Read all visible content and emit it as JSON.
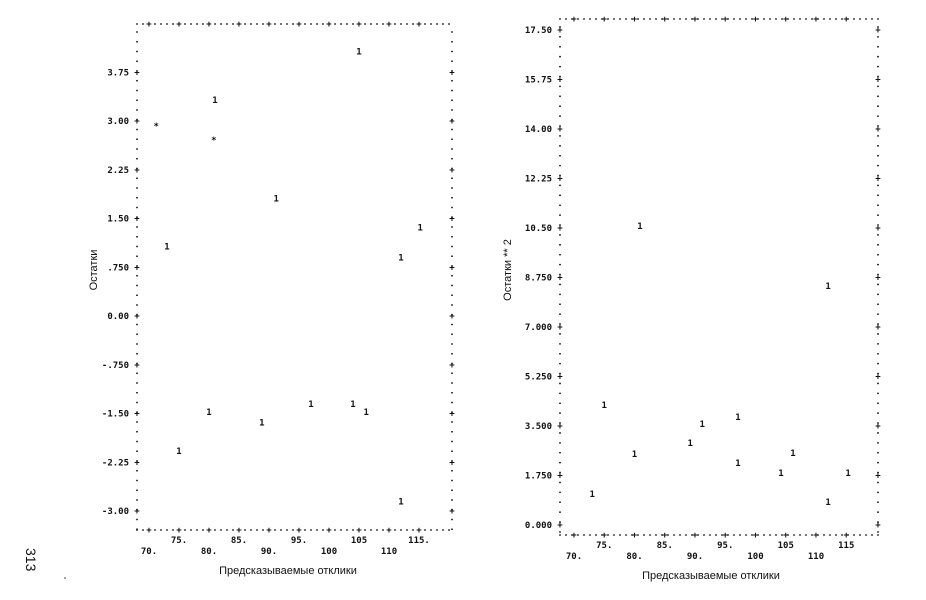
{
  "page_number": "313",
  "chart_data": [
    {
      "type": "scatter",
      "title": "",
      "xlabel": "Предсказываемые отклики",
      "ylabel": "Остатки",
      "xlim": [
        70,
        120
      ],
      "ylim": [
        -3.3,
        4.5
      ],
      "grid": false,
      "x_ticks": [
        {
          "v": 70,
          "label": "70."
        },
        {
          "v": 75,
          "label": "75."
        },
        {
          "v": 80,
          "label": "80."
        },
        {
          "v": 85,
          "label": "85."
        },
        {
          "v": 90,
          "label": "90."
        },
        {
          "v": 95,
          "label": "95."
        },
        {
          "v": 100,
          "label": "100"
        },
        {
          "v": 105,
          "label": "105"
        },
        {
          "v": 110,
          "label": "110"
        },
        {
          "v": 115,
          "label": "115."
        }
      ],
      "y_ticks": [
        {
          "v": 3.75,
          "label": "3.75"
        },
        {
          "v": 3.0,
          "label": "3.00"
        },
        {
          "v": 2.25,
          "label": "2.25"
        },
        {
          "v": 1.5,
          "label": "1.50"
        },
        {
          "v": 0.75,
          "label": ".750"
        },
        {
          "v": 0.0,
          "label": "0.00"
        },
        {
          "v": -0.75,
          "label": "-.750"
        },
        {
          "v": -1.5,
          "label": "-1.50"
        },
        {
          "v": -2.25,
          "label": "-2.25"
        },
        {
          "v": -3.0,
          "label": "-3.00"
        }
      ],
      "points": [
        {
          "x": 71.2,
          "y": 2.92,
          "symbol": "*"
        },
        {
          "x": 73.0,
          "y": 1.07,
          "symbol": "1"
        },
        {
          "x": 75.0,
          "y": -2.08,
          "symbol": "1"
        },
        {
          "x": 80.0,
          "y": -1.48,
          "symbol": "1"
        },
        {
          "x": 81.0,
          "y": 3.32,
          "symbol": "1"
        },
        {
          "x": 80.8,
          "y": 2.71,
          "symbol": "*"
        },
        {
          "x": 91.2,
          "y": 1.81,
          "symbol": "1"
        },
        {
          "x": 88.8,
          "y": -1.64,
          "symbol": "1"
        },
        {
          "x": 97.0,
          "y": -1.35,
          "symbol": "1"
        },
        {
          "x": 105.0,
          "y": 4.07,
          "symbol": "1"
        },
        {
          "x": 104.0,
          "y": -1.35,
          "symbol": "1"
        },
        {
          "x": 106.2,
          "y": -1.48,
          "symbol": "1"
        },
        {
          "x": 112.0,
          "y": 0.9,
          "symbol": "1"
        },
        {
          "x": 112.0,
          "y": -2.85,
          "symbol": "1"
        },
        {
          "x": 115.2,
          "y": 1.36,
          "symbol": "1"
        }
      ]
    },
    {
      "type": "scatter",
      "title": "",
      "xlabel": "Предсказываемые отклики",
      "ylabel": "Остатки ** 2",
      "xlim": [
        70,
        120
      ],
      "ylim": [
        -0.35,
        17.9
      ],
      "grid": false,
      "x_ticks": [
        {
          "v": 70,
          "label": "70."
        },
        {
          "v": 75,
          "label": "75."
        },
        {
          "v": 80,
          "label": "80."
        },
        {
          "v": 85,
          "label": "85."
        },
        {
          "v": 90,
          "label": "90."
        },
        {
          "v": 95,
          "label": "95."
        },
        {
          "v": 100,
          "label": "100"
        },
        {
          "v": 105,
          "label": "105"
        },
        {
          "v": 110,
          "label": "110"
        },
        {
          "v": 115,
          "label": "115"
        }
      ],
      "y_ticks": [
        {
          "v": 17.5,
          "label": "17.50"
        },
        {
          "v": 15.75,
          "label": "15.75"
        },
        {
          "v": 14.0,
          "label": "14.00"
        },
        {
          "v": 12.25,
          "label": "12.25"
        },
        {
          "v": 10.5,
          "label": "10.50"
        },
        {
          "v": 8.75,
          "label": "8.750"
        },
        {
          "v": 7.0,
          "label": "7.000"
        },
        {
          "v": 5.25,
          "label": "5.250"
        },
        {
          "v": 3.5,
          "label": "3.500"
        },
        {
          "v": 1.75,
          "label": "1.750"
        },
        {
          "v": 0.0,
          "label": "0.000"
        }
      ],
      "points": [
        {
          "x": 73.0,
          "y": 1.1,
          "symbol": "1"
        },
        {
          "x": 75.0,
          "y": 4.24,
          "symbol": "1"
        },
        {
          "x": 80.9,
          "y": 10.57,
          "symbol": "1"
        },
        {
          "x": 80.0,
          "y": 2.51,
          "symbol": "1"
        },
        {
          "x": 89.2,
          "y": 2.9,
          "symbol": "1"
        },
        {
          "x": 91.2,
          "y": 3.57,
          "symbol": "1"
        },
        {
          "x": 97.1,
          "y": 2.19,
          "symbol": "1"
        },
        {
          "x": 97.1,
          "y": 3.82,
          "symbol": "1"
        },
        {
          "x": 104.2,
          "y": 1.84,
          "symbol": "1"
        },
        {
          "x": 106.2,
          "y": 2.55,
          "symbol": "1"
        },
        {
          "x": 112.0,
          "y": 8.45,
          "symbol": "1"
        },
        {
          "x": 112.0,
          "y": 0.81,
          "symbol": "1"
        },
        {
          "x": 115.3,
          "y": 1.84,
          "symbol": "1"
        }
      ]
    }
  ]
}
